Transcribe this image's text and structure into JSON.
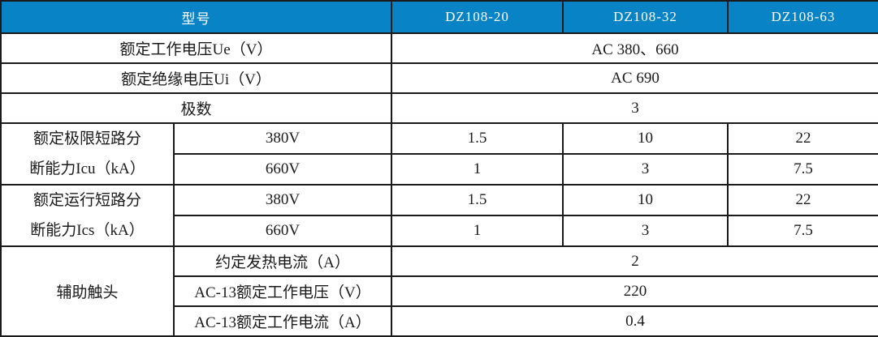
{
  "table": {
    "header": {
      "model_label": "型号",
      "columns": [
        "DZ108-20",
        "DZ108-32",
        "DZ108-63"
      ]
    },
    "rows": {
      "ue": {
        "label": "额定工作电压Ue（V）",
        "value": "AC 380、660"
      },
      "ui": {
        "label": "额定绝缘电压Ui（V）",
        "value": "AC 690"
      },
      "poles": {
        "label": "极数",
        "value": "3"
      },
      "icu": {
        "label": "额定极限短路分\n断能力Icu（kA）",
        "sub": [
          {
            "label": "380V",
            "values": [
              "1.5",
              "10",
              "22"
            ]
          },
          {
            "label": "660V",
            "values": [
              "1",
              "3",
              "7.5"
            ]
          }
        ]
      },
      "ics": {
        "label": "额定运行短路分\n断能力Ics（kA）",
        "sub": [
          {
            "label": "380V",
            "values": [
              "1.5",
              "10",
              "22"
            ]
          },
          {
            "label": "660V",
            "values": [
              "1",
              "3",
              "7.5"
            ]
          }
        ]
      },
      "aux": {
        "label": "辅助触头",
        "sub": [
          {
            "label": "约定发热电流（A）",
            "value": "2"
          },
          {
            "label": "AC-13额定工作电压（V）",
            "value": "220"
          },
          {
            "label": "AC-13额定工作电流（A）",
            "value": "0.4"
          }
        ]
      }
    },
    "colors": {
      "header_bg": "#0884C6",
      "header_text": "#FFFFFF",
      "border": "#1A1A1A",
      "body_text": "#1A1A1A"
    }
  }
}
